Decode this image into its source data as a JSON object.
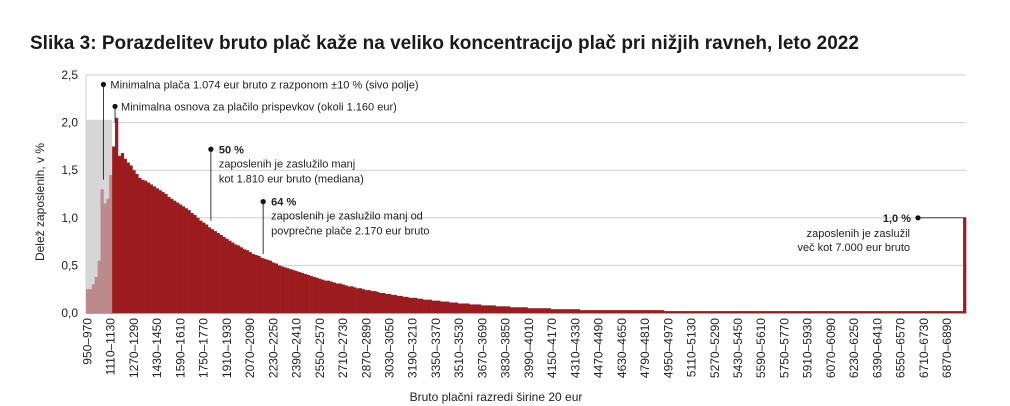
{
  "chart_data": {
    "type": "bar",
    "title": "Slika 3: Porazdelitev bruto plač kaže na veliko koncentracijo plač pri nižjih ravneh, leto 2022",
    "xlabel": "Bruto plačni razredi širine 20 eur",
    "ylabel": "Delež zaposlenih, v %",
    "ylim": [
      0,
      2.5
    ],
    "yticks": [
      "0,0",
      "0,5",
      "1,0",
      "1,5",
      "2,0",
      "2,5"
    ],
    "grid": true,
    "bin_width": 20,
    "x_start": 950,
    "x_tick_labels": [
      "950–970",
      "1110–1130",
      "1270–1290",
      "1430–1450",
      "1590–1610",
      "1750–1770",
      "1910–1930",
      "2070–2090",
      "2230–2250",
      "2390–2410",
      "2550–2570",
      "2710–2730",
      "2870–2890",
      "3030–3050",
      "3190–3210",
      "3350–3370",
      "3510–3530",
      "3670–3690",
      "3830–3850",
      "3990–4010",
      "4150–4170",
      "4310–4330",
      "4470–4490",
      "4630–4650",
      "4790–4810",
      "4950–4970",
      "5110–5130",
      "5270–5290",
      "5430–5450",
      "5590–5610",
      "5750–5770",
      "5910–5930",
      "6070–6090",
      "6230–6250",
      "6390–6410",
      "6550–6570",
      "6710–6730",
      "6870–6890"
    ],
    "colors": {
      "main": "#9b1b1f",
      "light": "#bc8a8c",
      "grey_band": "#d6d6d6"
    },
    "series": [
      {
        "name": "",
        "values": [
          0.25,
          0.25,
          0.3,
          0.38,
          0.55,
          1.3,
          1.15,
          1.2,
          1.45,
          1.75,
          2.05,
          1.65,
          1.68,
          1.62,
          1.58,
          1.55,
          1.5,
          1.46,
          1.42,
          1.4,
          1.39,
          1.37,
          1.35,
          1.33,
          1.31,
          1.29,
          1.27,
          1.25,
          1.22,
          1.2,
          1.18,
          1.16,
          1.14,
          1.12,
          1.1,
          1.08,
          1.05,
          1.03,
          1.0,
          0.97,
          0.95,
          0.93,
          0.9,
          0.88,
          0.86,
          0.84,
          0.82,
          0.8,
          0.78,
          0.76,
          0.74,
          0.72,
          0.71,
          0.69,
          0.67,
          0.66,
          0.64,
          0.62,
          0.61,
          0.6,
          0.58,
          0.57,
          0.56,
          0.55,
          0.53,
          0.52,
          0.5,
          0.49,
          0.48,
          0.47,
          0.46,
          0.45,
          0.44,
          0.43,
          0.42,
          0.41,
          0.4,
          0.39,
          0.38,
          0.37,
          0.36,
          0.35,
          0.34,
          0.34,
          0.33,
          0.32,
          0.31,
          0.31,
          0.3,
          0.29,
          0.28,
          0.28,
          0.27,
          0.26,
          0.26,
          0.25,
          0.24,
          0.24,
          0.23,
          0.23,
          0.22,
          0.21,
          0.21,
          0.2,
          0.2,
          0.19,
          0.19,
          0.18,
          0.18,
          0.17,
          0.17,
          0.16,
          0.16,
          0.16,
          0.15,
          0.15,
          0.14,
          0.14,
          0.14,
          0.13,
          0.13,
          0.13,
          0.12,
          0.12,
          0.12,
          0.11,
          0.11,
          0.11,
          0.1,
          0.1,
          0.1,
          0.1,
          0.09,
          0.09,
          0.09,
          0.09,
          0.08,
          0.08,
          0.08,
          0.08,
          0.08,
          0.07,
          0.07,
          0.07,
          0.07,
          0.07,
          0.06,
          0.06,
          0.06,
          0.06,
          0.06,
          0.06,
          0.05,
          0.05,
          0.05,
          0.05,
          0.05,
          0.05,
          0.05,
          0.05,
          0.04,
          0.04,
          0.04,
          0.04,
          0.04,
          0.04,
          0.04,
          0.04,
          0.04,
          0.04,
          0.03,
          0.03,
          0.03,
          0.03,
          0.03,
          0.03,
          0.03,
          0.03,
          0.03,
          0.03,
          0.03,
          0.03,
          0.03,
          0.03,
          0.03,
          0.03,
          0.03,
          0.03,
          0.03,
          0.03,
          0.03,
          0.03,
          0.03,
          0.03,
          0.03,
          0.03,
          0.03,
          0.03,
          0.03,
          0.02,
          0.02,
          0.02,
          0.02,
          0.02,
          0.02,
          0.02,
          0.02,
          0.02,
          0.02,
          0.02,
          0.02,
          0.02,
          0.02,
          0.02,
          0.02,
          0.02,
          0.02,
          0.02,
          0.02,
          0.02,
          0.02,
          0.02,
          0.02,
          0.02,
          0.02,
          0.02,
          0.02,
          0.02,
          0.02,
          0.02,
          0.02,
          0.02,
          0.02,
          0.02,
          0.02,
          0.02,
          0.02,
          0.02,
          0.02,
          0.02,
          0.02,
          0.02,
          0.02,
          0.02,
          0.02,
          0.02,
          0.02,
          0.02,
          0.02,
          0.02,
          0.02,
          0.02,
          0.02,
          0.02,
          0.02,
          0.02,
          0.02,
          0.02,
          0.02,
          0.02,
          0.02,
          0.02,
          0.02,
          0.02,
          0.02,
          0.02,
          0.02,
          0.02,
          0.02,
          0.02,
          0.02,
          0.02,
          0.02,
          0.02,
          0.02,
          0.02,
          0.02,
          0.02,
          0.02,
          0.02,
          0.02,
          0.02,
          0.02,
          0.02,
          0.02,
          0.02,
          0.02,
          0.02,
          0.02,
          0.02,
          0.02,
          0.02,
          0.02,
          0.02,
          0.02,
          0.02,
          0.02,
          0.02,
          0.02,
          0.02,
          0.02,
          0.02,
          1.0
        ]
      }
    ],
    "grey_band_range": [
      950,
      1130
    ],
    "grey_band_top": 2.03,
    "annotations": [
      {
        "bold": "",
        "lines": [
          "Minimalna plača 1.074 eur bruto z razponom ±10 % (sivo polje)"
        ],
        "x_value": 1070,
        "y_value": 2.4
      },
      {
        "bold": "",
        "lines": [
          "Minimalna osnova za plačilo prispevkov (okoli 1.160 eur)"
        ],
        "x_value": 1150,
        "y_value": 2.17
      },
      {
        "bold": "50 %",
        "lines": [
          "zaposlenih  je zaslužilo manj",
          "kot 1.810 eur bruto (mediana)"
        ],
        "x_value": 1810,
        "y_value": 1.72
      },
      {
        "bold": "64 %",
        "lines": [
          "zaposlenih je zaslužilo manj od",
          "povprečne plače 2.170 eur bruto"
        ],
        "x_value": 2170,
        "y_value": 1.17
      },
      {
        "bold": "1,0 %",
        "lines": [
          "zaposlenih je zaslužil",
          "več kot 7.000 eur bruto"
        ],
        "x_value": 7000,
        "y_value": 1.0
      }
    ]
  }
}
